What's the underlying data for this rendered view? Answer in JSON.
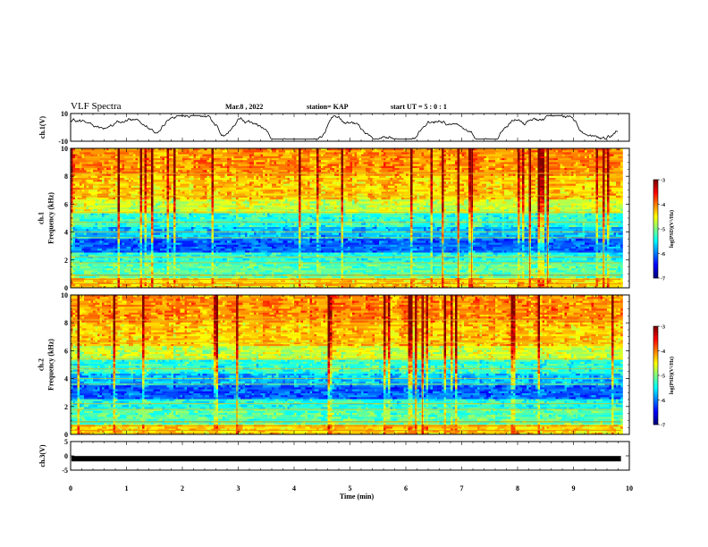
{
  "header": {
    "title": "VLF Spectra",
    "date": "Mar.8 , 2022",
    "station": "station= KAP",
    "start": "start  UT =  5 : 0  : 1"
  },
  "chart_data": [
    {
      "type": "line",
      "name": "ch1-waveform",
      "ylabel": "ch.1(V)",
      "ylim": [
        -10,
        10
      ],
      "yticks": [
        "10",
        "-10"
      ],
      "xlim": [
        0,
        10
      ],
      "duration_min": 9.8
    },
    {
      "type": "heatmap",
      "name": "ch1-spectrogram",
      "ylabel": "ch.1\nFrequency  (kHz)",
      "ylim": [
        0,
        10
      ],
      "yticks": [
        "0",
        "2",
        "4",
        "6",
        "8",
        "10"
      ],
      "xlim": [
        0,
        10
      ],
      "colorbar": {
        "label": "log(PSD)(V²/Hz)",
        "range": [
          -7,
          -3
        ],
        "ticks": [
          "-3",
          "-4",
          "-5",
          "-6",
          "-7"
        ]
      }
    },
    {
      "type": "heatmap",
      "name": "ch2-spectrogram",
      "ylabel": "ch.2\nFrequency  (kHz)",
      "ylim": [
        0,
        10
      ],
      "yticks": [
        "0",
        "2",
        "4",
        "6",
        "8",
        "10"
      ],
      "xlim": [
        0,
        10
      ],
      "colorbar": {
        "label": "log(PSD)(V²/Hz)",
        "range": [
          -7,
          -3
        ],
        "ticks": [
          "-3",
          "-4",
          "-5",
          "-6",
          "-7"
        ]
      }
    },
    {
      "type": "line",
      "name": "ch3-waveform",
      "ylabel": "ch.3(V)",
      "ylim": [
        -5,
        5
      ],
      "yticks": [
        "5",
        "0",
        "-5"
      ],
      "level_v": -1,
      "xlim": [
        0,
        10
      ]
    }
  ],
  "xaxis": {
    "label": "Time  (min)",
    "ticks": [
      "0",
      "1",
      "2",
      "3",
      "4",
      "5",
      "6",
      "7",
      "8",
      "9",
      "10"
    ]
  }
}
